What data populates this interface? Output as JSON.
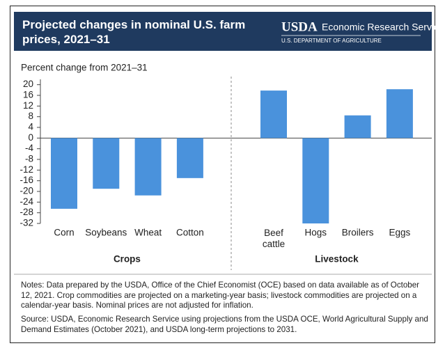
{
  "header": {
    "logo": "USDA",
    "agency": "Economic Research Service",
    "department": "U.S. DEPARTMENT OF AGRICULTURE"
  },
  "chart_data": {
    "type": "bar",
    "title": "Projected changes in nominal U.S. farm prices, 2021–31",
    "y_label": "Percent change from 2021–31",
    "color": "#4a92dc",
    "groups": [
      {
        "name": "Crops",
        "categories": [
          "Corn",
          "Soybeans",
          "Wheat",
          "Cotton"
        ],
        "values": [
          -26.5,
          -19,
          -21.5,
          -15
        ]
      },
      {
        "name": "Livestock",
        "categories": [
          "Beef cattle",
          "Hogs",
          "Broilers",
          "Eggs"
        ],
        "values": [
          17.8,
          -32,
          8.5,
          18.3
        ]
      }
    ],
    "ylim": [
      -32,
      22
    ],
    "yticks": [
      20,
      16,
      12,
      8,
      4,
      0,
      -4,
      -8,
      -12,
      -16,
      -20,
      -24,
      -28,
      -32
    ]
  },
  "notes": "Notes: Data prepared by the USDA, Office of the Chief Economist (OCE) based on data available as of October 12, 2021. Crop commodities are projected on a marketing-year basis; livestock commodities are projected on a calendar-year basis. Nominal prices are not adjusted for inflation.",
  "source": "Source: USDA, Economic Research Service using projections from the USDA OCE, World Agricultural Supply and Demand Estimates (October 2021), and USDA long-term projections to 2031."
}
